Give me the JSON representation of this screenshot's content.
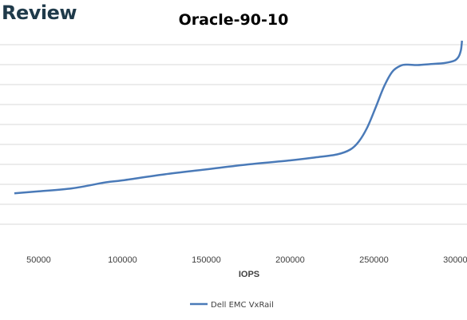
{
  "header": {
    "brand": "Review"
  },
  "chart_data": {
    "type": "line",
    "title": "Oracle-90-10",
    "xlabel": "IOPS",
    "ylabel": "",
    "xlim": [
      35000,
      303000
    ],
    "xticks": [
      50000,
      100000,
      150000,
      200000,
      250000,
      300000
    ],
    "xtick_labels": [
      "50000",
      "100000",
      "150000",
      "200000",
      "250000",
      "300000"
    ],
    "ylim": [
      0,
      11
    ],
    "grid": true,
    "legend": {
      "position": "bottom",
      "entries": [
        "Dell EMC VxRail"
      ]
    },
    "series": [
      {
        "name": "Dell EMC VxRail",
        "color": "#4a7ab8",
        "x": [
          35500,
          50000,
          70000,
          90000,
          100000,
          125000,
          150000,
          175000,
          200000,
          215000,
          228000,
          236000,
          241000,
          246000,
          251000,
          256000,
          261000,
          266000,
          270000,
          276000,
          284000,
          292000,
          298000,
          300500,
          301800,
          302300,
          302500
        ],
        "y": [
          2.55,
          2.65,
          2.8,
          3.1,
          3.2,
          3.5,
          3.75,
          4.0,
          4.2,
          4.35,
          4.5,
          4.75,
          5.15,
          5.85,
          6.85,
          7.9,
          8.65,
          8.95,
          9.0,
          8.98,
          9.03,
          9.08,
          9.2,
          9.4,
          9.7,
          10.0,
          10.2
        ]
      }
    ]
  }
}
